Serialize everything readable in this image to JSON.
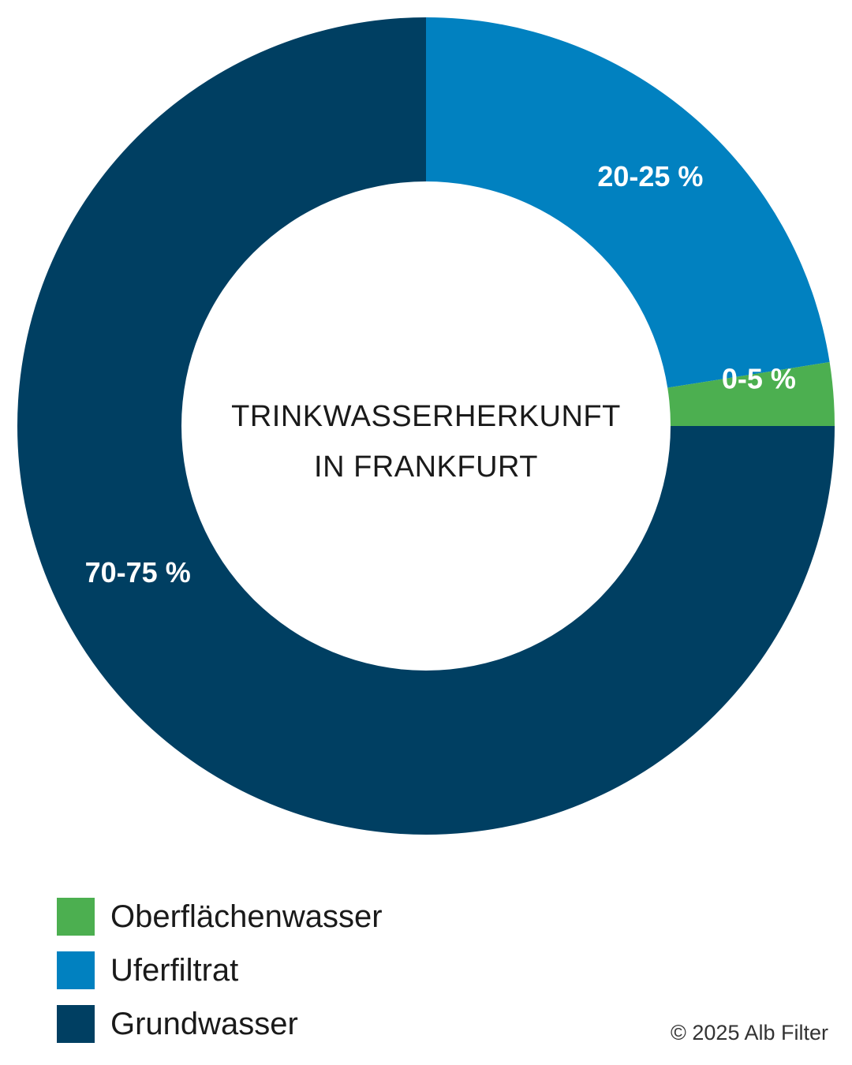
{
  "chart_data": {
    "type": "pie",
    "title_lines": [
      "TRINKWASSERHERKUNFT",
      "IN FRANKFURT"
    ],
    "slices": [
      {
        "name": "Uferfiltrat",
        "value": 22.5,
        "label": "20-25 %",
        "color": "#0181c0"
      },
      {
        "name": "Oberflächenwasser",
        "value": 2.5,
        "label": "0-5 %",
        "color": "#4caf50"
      },
      {
        "name": "Grundwasser",
        "value": 75,
        "label": "70-75 %",
        "color": "#003f62"
      }
    ],
    "legend": [
      {
        "label": "Oberflächenwasser",
        "color": "#4caf50"
      },
      {
        "label": "Uferfiltrat",
        "color": "#0181c0"
      },
      {
        "label": "Grundwasser",
        "color": "#003f62"
      }
    ],
    "legend_position": "bottom-left"
  },
  "copyright": "© 2025 Alb Filter"
}
